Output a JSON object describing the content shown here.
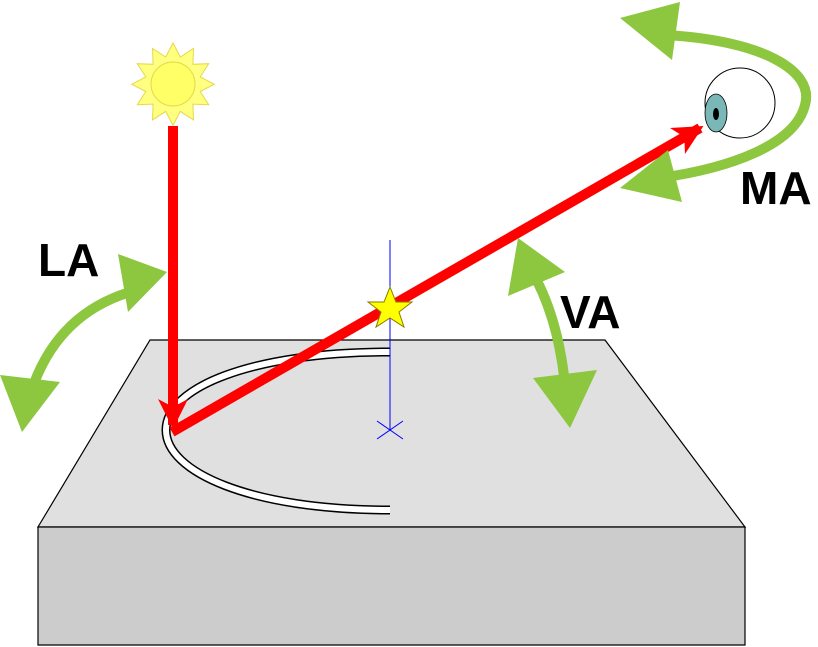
{
  "labels": {
    "lighting_angle": "LA",
    "viewing_angle": "VA",
    "rotation_angle": "MA"
  },
  "colors": {
    "light_ray": "#ff0000",
    "angle_arrow": "#8dc63f",
    "platform_top": "#e0e0e0",
    "platform_side": "#cccccc",
    "sun": "#ffff66",
    "sun_outline": "#e6d84a",
    "star": "#ffff00",
    "axis_line": "#0000ff",
    "eye_iris": "#7ab8b8",
    "label_text": "#000000"
  },
  "icons": {
    "light_source": "sun-icon",
    "observer": "eye-icon",
    "sample_point": "star-icon"
  }
}
